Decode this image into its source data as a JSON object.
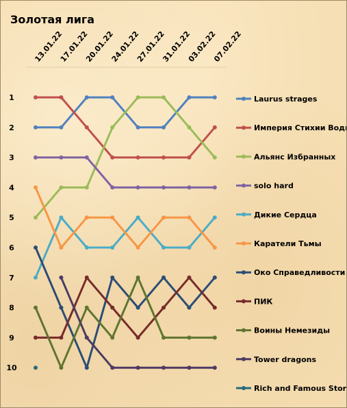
{
  "chart_data": {
    "type": "line",
    "title": "Золотая лига",
    "x": [
      "13.01.22",
      "17.01.22",
      "20.01.22",
      "24.01.22",
      "27.01.22",
      "31.01.22",
      "03.02.22",
      "07.02.22"
    ],
    "y_ticks": [
      "1",
      "2",
      "3",
      "4",
      "5",
      "6",
      "7",
      "8",
      "9",
      "10"
    ],
    "ylim": [
      1,
      10
    ],
    "y_reversed": true,
    "grid": false,
    "legend_position": "right",
    "series": [
      {
        "name": "Laurus strages",
        "color": "#4f81bd",
        "values": [
          2,
          2,
          1,
          1,
          2,
          2,
          1,
          1
        ]
      },
      {
        "name": "Империя Стихии Воды",
        "color": "#c0504d",
        "values": [
          1,
          1,
          2,
          3,
          3,
          3,
          3,
          2
        ]
      },
      {
        "name": "Альянс Избранных",
        "color": "#9bbb59",
        "values": [
          5,
          4,
          4,
          2,
          1,
          1,
          2,
          3
        ]
      },
      {
        "name": "solo hard",
        "color": "#8064a2",
        "values": [
          3,
          3,
          3,
          4,
          4,
          4,
          4,
          4
        ]
      },
      {
        "name": "Дикие Сердца",
        "color": "#4bacc6",
        "values": [
          7,
          5,
          6,
          6,
          5,
          6,
          6,
          5
        ]
      },
      {
        "name": "Каратели Тьмы",
        "color": "#f79646",
        "values": [
          4,
          6,
          5,
          5,
          6,
          5,
          5,
          6
        ]
      },
      {
        "name": "Око Справедливости",
        "color": "#2c4d75",
        "values": [
          6,
          8,
          10,
          7,
          8,
          7,
          8,
          7
        ]
      },
      {
        "name": "ПИК",
        "color": "#772c2a",
        "values": [
          9,
          9,
          7,
          8,
          9,
          8,
          7,
          8
        ]
      },
      {
        "name": "Воины Немезиды",
        "color": "#5f7530",
        "values": [
          8,
          10,
          8,
          9,
          7,
          9,
          9,
          9
        ]
      },
      {
        "name": "Tower dragons",
        "color": "#4d3b62",
        "values": [
          null,
          7,
          9,
          10,
          10,
          10,
          10,
          10
        ]
      },
      {
        "name": "Rich and Famous Storms",
        "color": "#276a7c",
        "values": [
          10,
          null,
          null,
          null,
          null,
          null,
          null,
          null
        ]
      }
    ]
  }
}
